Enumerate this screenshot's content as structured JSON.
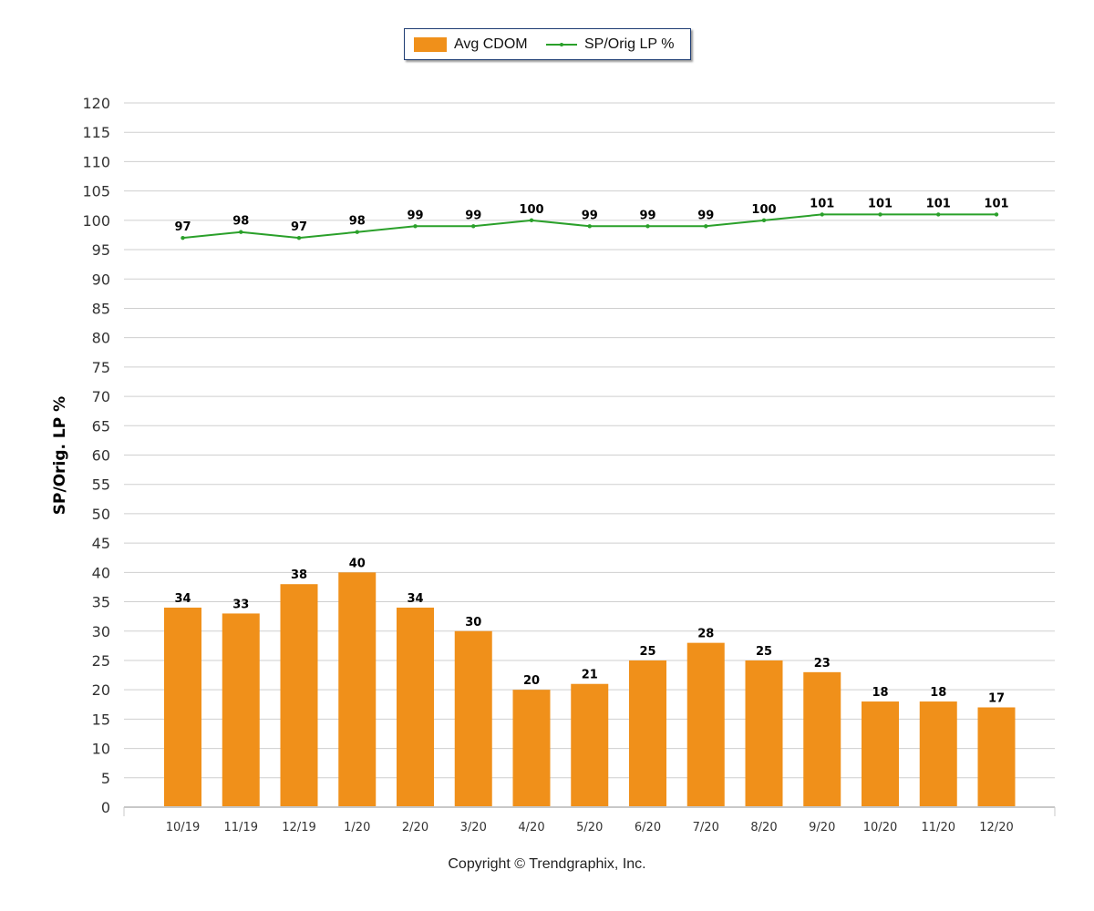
{
  "legend": {
    "bar_label": "Avg CDOM",
    "line_label": "SP/Orig LP %"
  },
  "axis": {
    "ylabel": "SP/Orig. LP %"
  },
  "footer": {
    "copyright": "Copyright © Trendgraphix, Inc."
  },
  "colors": {
    "bar": "#f0901a",
    "line": "#2aa02a",
    "grid": "#cfcfcf"
  },
  "chart_data": {
    "type": "bar",
    "categories": [
      "10/19",
      "11/19",
      "12/19",
      "1/20",
      "2/20",
      "3/20",
      "4/20",
      "5/20",
      "6/20",
      "7/20",
      "8/20",
      "9/20",
      "10/20",
      "11/20",
      "12/20"
    ],
    "series": [
      {
        "name": "Avg CDOM",
        "type": "bar",
        "values": [
          34,
          33,
          38,
          40,
          34,
          30,
          20,
          21,
          25,
          28,
          25,
          23,
          18,
          18,
          17
        ]
      },
      {
        "name": "SP/Orig LP %",
        "type": "line",
        "values": [
          97,
          98,
          97,
          98,
          99,
          99,
          100,
          99,
          99,
          99,
          100,
          101,
          101,
          101,
          101
        ]
      }
    ],
    "ylabel": "SP/Orig. LP %",
    "ylim": [
      0,
      120
    ],
    "yticks": [
      0,
      5,
      10,
      15,
      20,
      25,
      30,
      35,
      40,
      45,
      50,
      55,
      60,
      65,
      70,
      75,
      80,
      85,
      90,
      95,
      100,
      105,
      110,
      115,
      120
    ],
    "grid": true,
    "legend_position": "top-center"
  }
}
